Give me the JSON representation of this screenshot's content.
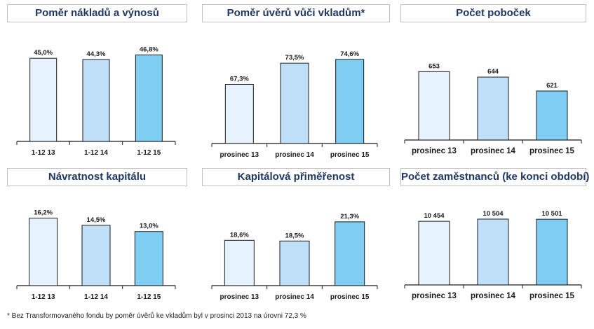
{
  "colors": {
    "bar1": "#e6f2fd",
    "bar2": "#bfe0f8",
    "bar3": "#7fcdf2",
    "outline": "#1a1a1a",
    "title": "#1f3864"
  },
  "chart_data": [
    {
      "type": "bar",
      "title": "Poměr nákladů a výnosů",
      "categories": [
        "1-12 13",
        "1-12 14",
        "1-12 15"
      ],
      "values": [
        45.0,
        44.3,
        46.8
      ],
      "labels": [
        "45,0%",
        "44,3%",
        "46,8%"
      ],
      "ylim": [
        0,
        50
      ]
    },
    {
      "type": "bar",
      "title": "Poměr úvěrů vůči vkladům*",
      "categories": [
        "prosinec 13",
        "prosinec 14",
        "prosinec 15"
      ],
      "values": [
        67.3,
        73.5,
        74.6
      ],
      "labels": [
        "67,3%",
        "73,5%",
        "74,6%"
      ],
      "ylim": [
        50,
        76
      ]
    },
    {
      "type": "bar",
      "title": "Počet poboček",
      "categories": [
        "prosinec 13",
        "prosinec 14",
        "prosinec 15"
      ],
      "values": [
        653,
        644,
        621
      ],
      "labels": [
        "653",
        "644",
        "621"
      ],
      "ylim": [
        540,
        658
      ]
    },
    {
      "type": "bar",
      "title": "Návratnost kapitálu",
      "categories": [
        "1-12 13",
        "1-12 14",
        "1-12 15"
      ],
      "values": [
        16.2,
        14.5,
        13.0
      ],
      "labels": [
        "16,2%",
        "14,5%",
        "13,0%"
      ],
      "ylim": [
        0,
        17.5
      ]
    },
    {
      "type": "bar",
      "title": "Kapitálová přiměřenost",
      "categories": [
        "prosinec 13",
        "prosinec 14",
        "prosinec 15"
      ],
      "values": [
        18.6,
        18.5,
        21.3
      ],
      "labels": [
        "18,6%",
        "18,5%",
        "21,3%"
      ],
      "ylim": [
        12,
        22
      ]
    },
    {
      "type": "bar",
      "title": "Počet zaměstnanců (ke konci období)",
      "categories": [
        "prosinec 13",
        "prosinec 14",
        "prosinec 15"
      ],
      "values": [
        10454,
        10504,
        10501
      ],
      "labels": [
        "10 454",
        "10 504",
        "10 501"
      ],
      "ylim": [
        9000,
        10600
      ]
    }
  ],
  "footnote": "* Bez Transformovaného fondu by poměr úvěrů ke vkladům byl v prosinci 2013 na úrovni 72,3 %"
}
